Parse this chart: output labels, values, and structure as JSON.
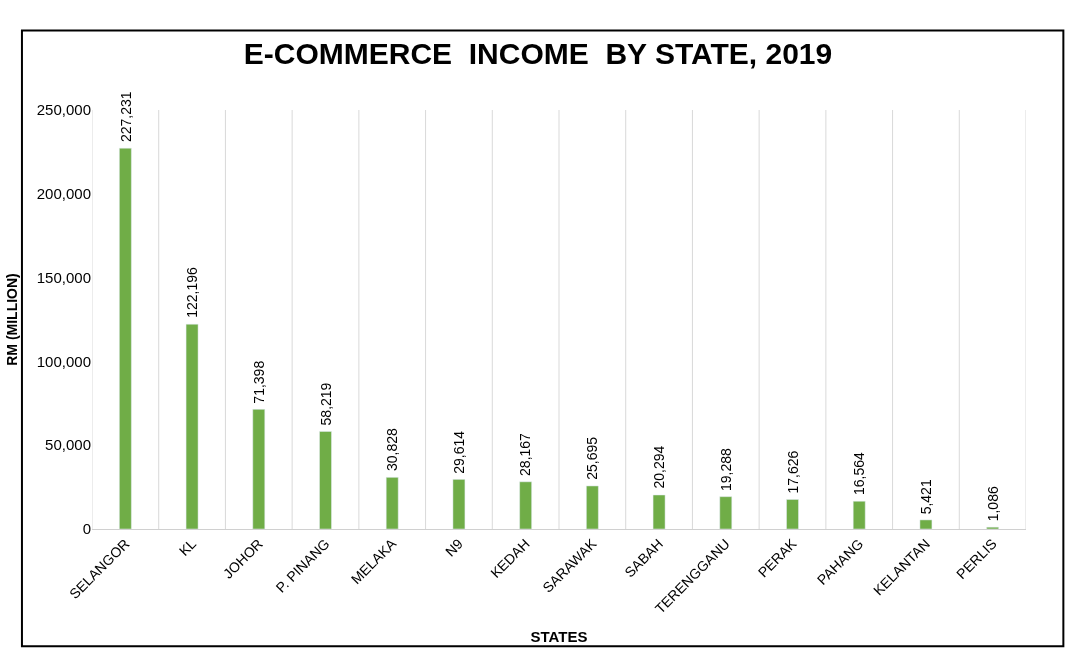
{
  "chart_data": {
    "type": "bar",
    "title": "E-COMMERCE  INCOME  BY STATE, 2019",
    "xlabel": "STATES",
    "ylabel": "RM (MILLION)",
    "categories": [
      "SELANGOR",
      "KL",
      "JOHOR",
      "P. PINANG",
      "MELAKA",
      "N9",
      "KEDAH",
      "SARAWAK",
      "SABAH",
      "TERENGGANU",
      "PERAK",
      "PAHANG",
      "KELANTAN",
      "PERLIS"
    ],
    "values": [
      227231,
      122196,
      71398,
      58219,
      30828,
      29614,
      28167,
      25695,
      20294,
      19288,
      17626,
      16564,
      5421,
      1086
    ],
    "value_labels": [
      "227,231",
      "122,196",
      "71,398",
      "58,219",
      "30,828",
      "29,614",
      "28,167",
      "25,695",
      "20,294",
      "19,288",
      "17,626",
      "16,564",
      "5,421",
      "1,086"
    ],
    "color": "#70ad47",
    "ylim": [
      0,
      250000
    ],
    "yticks": [
      {
        "value": 0,
        "label": "0"
      },
      {
        "value": 50000,
        "label": "50,000"
      },
      {
        "value": 100000,
        "label": "100,000"
      },
      {
        "value": 150000,
        "label": "150,000"
      },
      {
        "value": 200000,
        "label": "200,000"
      },
      {
        "value": 250000,
        "label": "250,000"
      }
    ],
    "grid": "x",
    "legend": false
  }
}
